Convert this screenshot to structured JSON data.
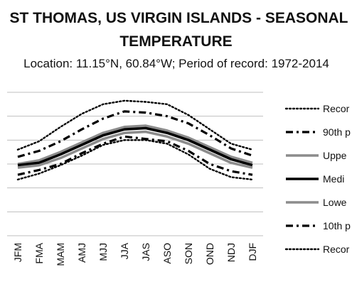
{
  "chart_data": {
    "type": "line",
    "title_line1": "ST THOMAS, US VIRGIN ISLANDS - SEASONAL",
    "title_line2": "TEMPERATURE",
    "subtitle": "Location: 11.15°N, 60.84°W; Period of record: 1972-2014",
    "categories": [
      "JFM",
      "FMA",
      "MAM",
      "AMJ",
      "MJJ",
      "JJA",
      "JAS",
      "ASO",
      "SON",
      "OND",
      "NDJ",
      "DJF"
    ],
    "ylim": [
      0,
      6
    ],
    "grid": true,
    "legend_position": "right",
    "series": [
      {
        "name": "Recor",
        "style": "dotted",
        "color": "#000000",
        "values": [
          3.6,
          3.95,
          4.55,
          5.1,
          5.5,
          5.65,
          5.6,
          5.5,
          5.05,
          4.45,
          3.85,
          3.6
        ]
      },
      {
        "name": "90th p",
        "style": "dashdot",
        "color": "#000000",
        "values": [
          3.3,
          3.55,
          3.95,
          4.45,
          4.9,
          5.2,
          5.15,
          5.0,
          4.7,
          4.2,
          3.65,
          3.35
        ]
      },
      {
        "name": "Uppe",
        "style": "solid",
        "color": "#8c8c8c",
        "values": [
          3.0,
          3.15,
          3.5,
          3.9,
          4.3,
          4.55,
          4.6,
          4.4,
          4.1,
          3.7,
          3.3,
          3.05
        ]
      },
      {
        "name": "Medi",
        "style": "solid",
        "color": "#000000",
        "values": [
          2.95,
          3.05,
          3.4,
          3.8,
          4.2,
          4.45,
          4.5,
          4.3,
          4.0,
          3.6,
          3.2,
          2.95
        ]
      },
      {
        "name": "Lowe",
        "style": "solid",
        "color": "#8c8c8c",
        "values": [
          2.85,
          2.95,
          3.25,
          3.65,
          4.05,
          4.3,
          4.35,
          4.15,
          3.85,
          3.45,
          3.05,
          2.85
        ]
      },
      {
        "name": "10th p",
        "style": "dashdot",
        "color": "#000000",
        "values": [
          2.55,
          2.75,
          3.0,
          3.45,
          3.85,
          4.15,
          4.05,
          3.95,
          3.55,
          3.0,
          2.7,
          2.55
        ]
      },
      {
        "name": "Recor",
        "style": "dotted",
        "color": "#000000",
        "values": [
          2.35,
          2.6,
          2.95,
          3.35,
          3.8,
          4.0,
          4.0,
          3.85,
          3.4,
          2.8,
          2.45,
          2.35
        ]
      }
    ]
  }
}
